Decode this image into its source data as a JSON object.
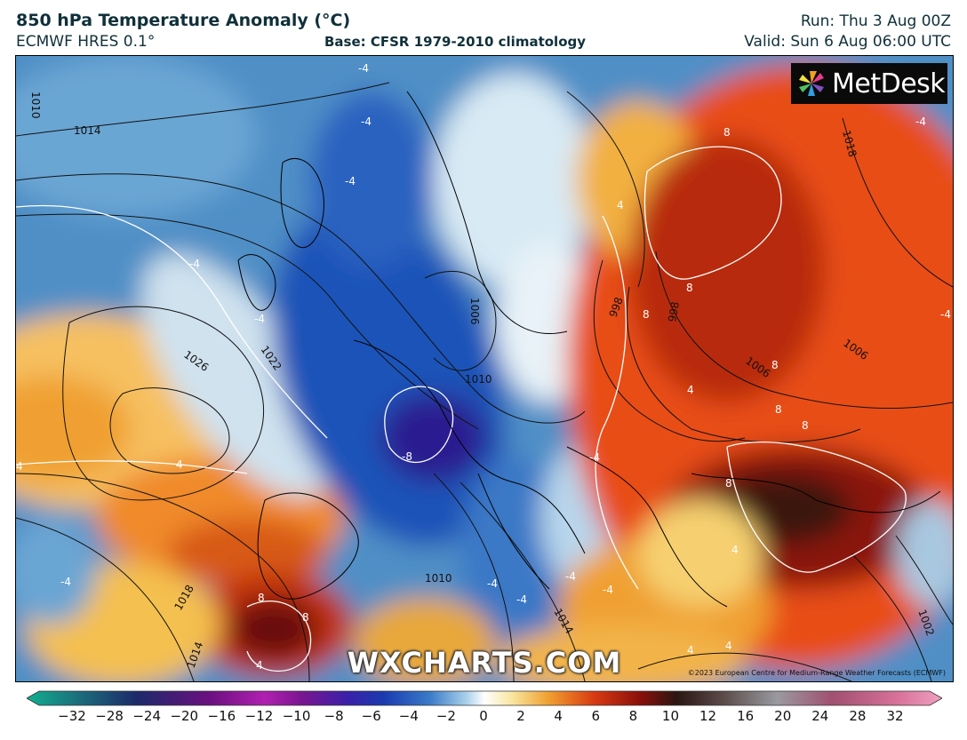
{
  "header": {
    "title": "850 hPa Temperature Anomaly (°C)",
    "subtitle": "ECMWF HRES 0.1°",
    "base": "Base: CFSR 1979-2010 climatology",
    "run": "Run: Thu 3 Aug 00Z",
    "valid": "Valid: Sun 6 Aug 06:00 UTC"
  },
  "logo": {
    "text": "MetDesk",
    "icon": "pinwheel-icon"
  },
  "watermark": "WXCHARTS.COM",
  "copyright": "©2023 European Centre for Medium-Range Weather Forecasts (ECMWF)",
  "colorbar": {
    "ticks": [
      "−32",
      "−28",
      "−24",
      "−20",
      "−16",
      "−12",
      "−10",
      "−8",
      "−6",
      "−4",
      "−2",
      "0",
      "2",
      "4",
      "6",
      "8",
      "10",
      "12",
      "16",
      "20",
      "24",
      "28",
      "32"
    ],
    "colors": {
      "neg_deep": "#10b090",
      "neg_dark": "#1c2a6a",
      "neg_purple": "#7a1690",
      "neg_blue": "#1a3ab0",
      "neg_mid": "#3a7ac8",
      "neg_light": "#a8d0ea",
      "zero": "#ffffff",
      "pos_light": "#f8e6a0",
      "pos_orange": "#f0a030",
      "pos_red": "#d83a12",
      "pos_dark": "#8a0f0a",
      "pos_black": "#2a1612",
      "pos_grey": "#9a9aa0",
      "pos_pink": "#f0a0c0"
    }
  },
  "map": {
    "contour_labels": [
      "1010",
      "1014",
      "1026",
      "1022",
      "1006",
      "1010",
      "1018",
      "1014",
      "1018",
      "998",
      "1006",
      "1014",
      "1002",
      "1010",
      "1006",
      "998"
    ],
    "anomaly_labels": [
      "-4",
      "-4",
      "-4",
      "-4",
      "-4",
      "-4",
      "-4",
      "-4",
      "-8",
      "-4",
      "-4",
      "-4",
      "-4",
      "-4",
      "4",
      "4",
      "4",
      "4",
      "4",
      "4",
      "4",
      "4",
      "8",
      "8",
      "8",
      "8",
      "8",
      "8",
      "8",
      "8",
      "8"
    ]
  }
}
